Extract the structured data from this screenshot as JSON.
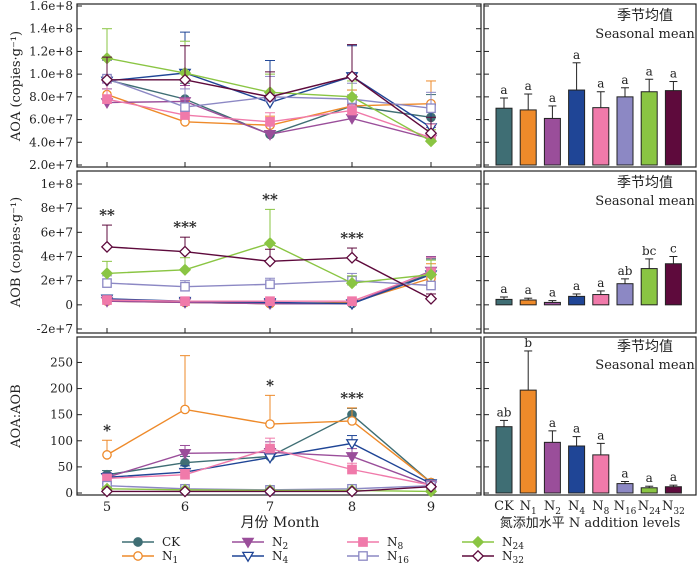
{
  "figure": {
    "months": [
      "5",
      "6",
      "7",
      "8",
      "9"
    ],
    "xlabel": "月份 Month",
    "bar_xlabel": "氮添加水平 N addition levels",
    "seasonal_title_cn": "季节均值",
    "seasonal_title_en": "Seasonal mean",
    "legend": [
      {
        "name": "CK",
        "color": "#3f6e74",
        "marker": "circle-filled"
      },
      {
        "name": "N1",
        "color": "#ee8a2a",
        "marker": "circle-open"
      },
      {
        "name": "N2",
        "color": "#9a4e9a",
        "marker": "triangle-down-filled"
      },
      {
        "name": "N4",
        "color": "#1f4596",
        "marker": "triangle-down-open"
      },
      {
        "name": "N8",
        "color": "#f07aaa",
        "marker": "square-filled"
      },
      {
        "name": "N16",
        "color": "#8c88c4",
        "marker": "square-open"
      },
      {
        "name": "N24",
        "color": "#8ac543",
        "marker": "diamond-filled"
      },
      {
        "name": "N32",
        "color": "#5e0a3c",
        "marker": "diamond-open"
      }
    ]
  },
  "chart_data": [
    {
      "type": "line",
      "panel": "AOA",
      "ylabel": "AOA (copies·g⁻¹)",
      "ytick_labels": [
        "2.0e+7",
        "4.0e+7",
        "6.0e+7",
        "8.0e+7",
        "1.0e+8",
        "1.2e+8",
        "1.4e+8",
        "1.6e+8"
      ],
      "ylim": [
        20000000,
        160000000
      ],
      "x": [
        5,
        6,
        7,
        8,
        9
      ],
      "series": [
        {
          "name": "CK",
          "values": [
            95000000,
            78000000,
            47000000,
            72000000,
            62000000
          ],
          "err": [
            18000000,
            14000000,
            8000000,
            14000000,
            20000000
          ]
        },
        {
          "name": "N1",
          "values": [
            82000000,
            58000000,
            55000000,
            72000000,
            74000000
          ],
          "err": [
            16000000,
            18000000,
            8000000,
            14000000,
            20000000
          ]
        },
        {
          "name": "N2",
          "values": [
            75000000,
            76000000,
            47000000,
            61000000,
            43000000
          ],
          "err": [
            12000000,
            14000000,
            8000000,
            12000000,
            10000000
          ]
        },
        {
          "name": "N4",
          "values": [
            94000000,
            101000000,
            75000000,
            98000000,
            53000000
          ],
          "err": [
            20000000,
            36000000,
            37000000,
            27000000,
            20000000
          ]
        },
        {
          "name": "N8",
          "values": [
            78000000,
            64000000,
            58000000,
            68000000,
            44000000
          ],
          "err": [
            14000000,
            14000000,
            8000000,
            12000000,
            12000000
          ]
        },
        {
          "name": "N16",
          "values": [
            96000000,
            71000000,
            80000000,
            78000000,
            70000000
          ],
          "err": [
            16000000,
            16000000,
            18000000,
            14000000,
            14000000
          ]
        },
        {
          "name": "N24",
          "values": [
            114000000,
            101000000,
            84000000,
            80000000,
            41000000
          ],
          "err": [
            26000000,
            28000000,
            16000000,
            14000000,
            10000000
          ]
        },
        {
          "name": "N32",
          "values": [
            95000000,
            95000000,
            80000000,
            98000000,
            48000000
          ],
          "err": [
            20000000,
            30000000,
            22000000,
            28000000,
            14000000
          ]
        }
      ]
    },
    {
      "type": "line",
      "panel": "AOB",
      "ylabel": "AOB (copies·g⁻¹)",
      "ytick_labels": [
        "-2e+7",
        "0",
        "2e+7",
        "4e+7",
        "6e+7",
        "8e+7",
        "1e+8"
      ],
      "ylim": [
        -20000000,
        100000000
      ],
      "x": [
        5,
        6,
        7,
        8,
        9
      ],
      "series": [
        {
          "name": "CK",
          "values": [
            4000000,
            2000000,
            1000000,
            1000000,
            26000000
          ],
          "err": [
            2000000,
            2000000,
            1000000,
            1000000,
            12000000
          ]
        },
        {
          "name": "N1",
          "values": [
            3000000,
            2000000,
            1000000,
            2000000,
            22000000
          ],
          "err": [
            2000000,
            2000000,
            1000000,
            1000000,
            12000000
          ]
        },
        {
          "name": "N2",
          "values": [
            3000000,
            2000000,
            1000000,
            1000000,
            28000000
          ],
          "err": [
            2000000,
            2000000,
            1000000,
            1000000,
            12000000
          ]
        },
        {
          "name": "N4",
          "values": [
            5000000,
            3000000,
            2000000,
            1000000,
            25000000
          ],
          "err": [
            2000000,
            2000000,
            1000000,
            1000000,
            14000000
          ]
        },
        {
          "name": "N8",
          "values": [
            4000000,
            3000000,
            3000000,
            3000000,
            27000000
          ],
          "err": [
            2000000,
            2000000,
            2000000,
            2000000,
            12000000
          ]
        },
        {
          "name": "N16",
          "values": [
            18000000,
            15000000,
            17000000,
            20000000,
            16000000
          ],
          "err": [
            6000000,
            5000000,
            5000000,
            6000000,
            8000000
          ]
        },
        {
          "name": "N24",
          "values": [
            26000000,
            29000000,
            51000000,
            18000000,
            25000000
          ],
          "err": [
            10000000,
            10000000,
            28000000,
            6000000,
            12000000
          ]
        },
        {
          "name": "N32",
          "values": [
            48000000,
            44000000,
            36000000,
            39000000,
            5000000
          ],
          "err": [
            18000000,
            12000000,
            10000000,
            8000000,
            4000000
          ]
        }
      ],
      "annotations": [
        {
          "x": 5,
          "text": "**"
        },
        {
          "x": 6,
          "text": "***"
        },
        {
          "x": 7,
          "text": "**"
        },
        {
          "x": 8,
          "text": "***"
        }
      ]
    },
    {
      "type": "line",
      "panel": "AOA:AOB",
      "ylabel": "AOA:AOB",
      "ytick_labels": [
        "0",
        "50",
        "100",
        "150",
        "200",
        "250"
      ],
      "ylim": [
        0,
        270
      ],
      "x": [
        5,
        6,
        7,
        8,
        9
      ],
      "series": [
        {
          "name": "CK",
          "values": [
            35,
            58,
            70,
            150,
            20
          ],
          "err": [
            8,
            12,
            15,
            12,
            4
          ]
        },
        {
          "name": "N1",
          "values": [
            73,
            160,
            132,
            138,
            20
          ],
          "err": [
            28,
            103,
            55,
            25,
            4
          ]
        },
        {
          "name": "N2",
          "values": [
            30,
            76,
            78,
            70,
            14
          ],
          "err": [
            8,
            15,
            20,
            15,
            4
          ]
        },
        {
          "name": "N4",
          "values": [
            30,
            40,
            68,
            95,
            18
          ],
          "err": [
            8,
            12,
            20,
            15,
            4
          ]
        },
        {
          "name": "N8",
          "values": [
            28,
            35,
            85,
            45,
            15
          ],
          "err": [
            6,
            10,
            20,
            12,
            4
          ]
        },
        {
          "name": "N16",
          "values": [
            14,
            8,
            6,
            8,
            14
          ],
          "err": [
            4,
            3,
            2,
            3,
            4
          ]
        },
        {
          "name": "N24",
          "values": [
            8,
            6,
            5,
            5,
            3
          ],
          "err": [
            3,
            2,
            2,
            2,
            1
          ]
        },
        {
          "name": "N32",
          "values": [
            3,
            3,
            3,
            3,
            12
          ],
          "err": [
            2,
            2,
            2,
            2,
            3
          ]
        }
      ],
      "annotations": [
        {
          "x": 5,
          "text": "*"
        },
        {
          "x": 7,
          "text": "*"
        },
        {
          "x": 8,
          "text": "***"
        }
      ]
    },
    {
      "type": "bar",
      "panel": "AOA seasonal mean",
      "categories": [
        "CK",
        "N1",
        "N2",
        "N4",
        "N8",
        "N16",
        "N24",
        "N32"
      ],
      "values": [
        70000000,
        68500000,
        61000000,
        86000000,
        70500000,
        80000000,
        84500000,
        85500000
      ],
      "err": [
        9000000,
        14000000,
        11000000,
        24000000,
        14000000,
        8000000,
        11000000,
        8000000
      ],
      "labels": [
        "a",
        "a",
        "a",
        "a",
        "a",
        "a",
        "a",
        "a"
      ],
      "ylim": [
        20000000,
        160000000
      ]
    },
    {
      "type": "bar",
      "panel": "AOB seasonal mean",
      "categories": [
        "CK",
        "N1",
        "N2",
        "N4",
        "N8",
        "N16",
        "N24",
        "N32"
      ],
      "values": [
        4500000,
        4000000,
        2000000,
        7000000,
        8500000,
        17500000,
        30000000,
        34000000
      ],
      "err": [
        2000000,
        1500000,
        1500000,
        2000000,
        3000000,
        4000000,
        8000000,
        6000000
      ],
      "labels": [
        "a",
        "a",
        "a",
        "a",
        "a",
        "ab",
        "bc",
        "c"
      ],
      "ylim": [
        -20000000,
        100000000
      ]
    },
    {
      "type": "bar",
      "panel": "AOA:AOB seasonal mean",
      "categories": [
        "CK",
        "N1",
        "N2",
        "N4",
        "N8",
        "N16",
        "N24",
        "N32"
      ],
      "values": [
        127,
        197,
        97,
        90,
        73,
        18,
        10,
        12
      ],
      "err": [
        12,
        75,
        22,
        18,
        22,
        4,
        3,
        3
      ],
      "labels": [
        "ab",
        "b",
        "a",
        "a",
        "a",
        "a",
        "a",
        "a"
      ],
      "ylim": [
        0,
        270
      ]
    }
  ]
}
